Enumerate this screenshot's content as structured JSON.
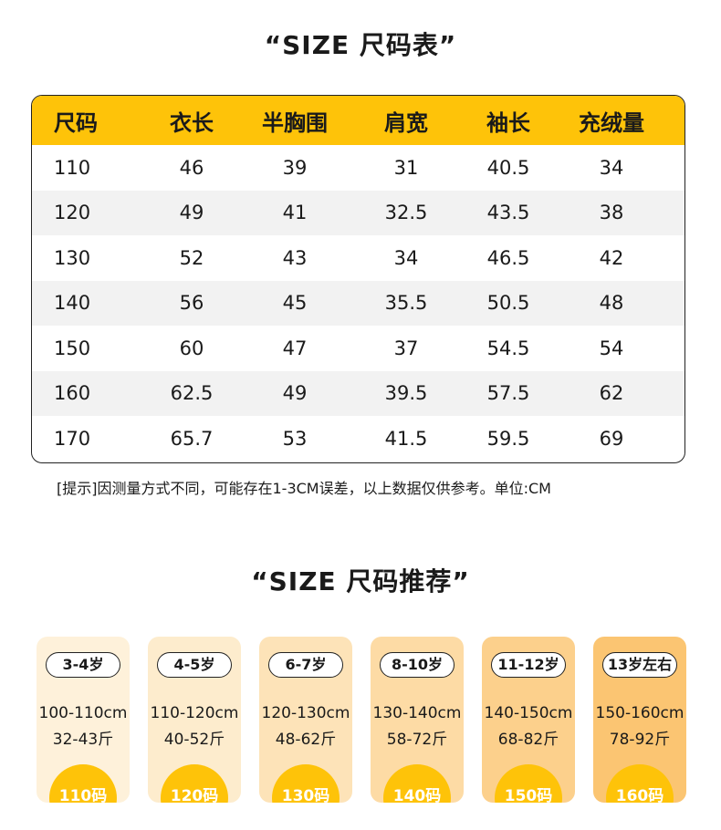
{
  "size_chart": {
    "title": "“SIZE 尺码表”",
    "headers": [
      "尺码",
      "衣长",
      "半胸围",
      "肩宽",
      "袖长",
      "充绒量"
    ],
    "rows": [
      [
        "110",
        "46",
        "39",
        "31",
        "40.5",
        "34"
      ],
      [
        "120",
        "49",
        "41",
        "32.5",
        "43.5",
        "38"
      ],
      [
        "130",
        "52",
        "43",
        "34",
        "46.5",
        "42"
      ],
      [
        "140",
        "56",
        "45",
        "35.5",
        "50.5",
        "48"
      ],
      [
        "150",
        "60",
        "47",
        "37",
        "54.5",
        "54"
      ],
      [
        "160",
        "62.5",
        "49",
        "39.5",
        "57.5",
        "62"
      ],
      [
        "170",
        "65.7",
        "53",
        "41.5",
        "59.5",
        "69"
      ]
    ],
    "note": "[提示]因测量方式不同，可能存在1-3CM误差，以上数据仅供参考。单位:CM",
    "header_color": "#fec309"
  },
  "recommend": {
    "title": "“SIZE 尺码推荐”",
    "cards": [
      {
        "age": "3-4岁",
        "height": "100-110cm",
        "weight": "32-43斤",
        "size": "110码",
        "color": "#fef1da"
      },
      {
        "age": "4-5岁",
        "height": "110-120cm",
        "weight": "40-52斤",
        "size": "120码",
        "color": "#fdeccd"
      },
      {
        "age": "6-7岁",
        "height": "120-130cm",
        "weight": "48-62斤",
        "size": "130码",
        "color": "#fde3b8"
      },
      {
        "age": "8-10岁",
        "height": "130-140cm",
        "weight": "58-72斤",
        "size": "140码",
        "color": "#fddba5"
      },
      {
        "age": "11-12岁",
        "height": "140-150cm",
        "weight": "68-82斤",
        "size": "150码",
        "color": "#fcd08c"
      },
      {
        "age": "13岁左右",
        "height": "150-160cm",
        "weight": "78-92斤",
        "size": "160码",
        "color": "#fbc572"
      }
    ],
    "badge_color": "#fec309"
  }
}
